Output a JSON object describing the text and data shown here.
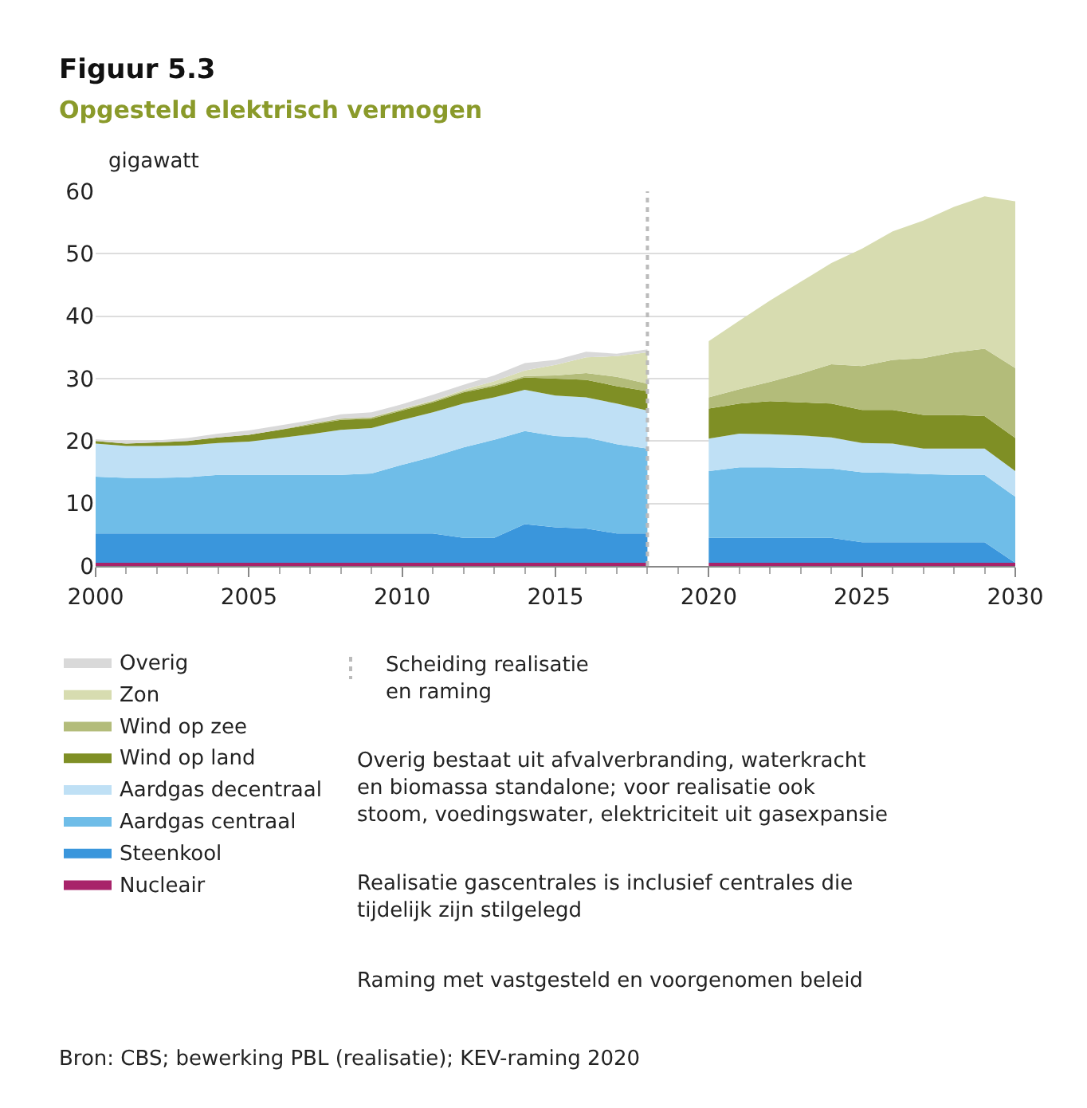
{
  "chart_data": {
    "type": "area",
    "stacked": true,
    "title": "Figuur 5.3",
    "subtitle": "Opgesteld elektrisch vermogen",
    "ylabel": "gigawatt",
    "x": [
      2000,
      2001,
      2002,
      2003,
      2004,
      2005,
      2006,
      2007,
      2008,
      2009,
      2010,
      2011,
      2012,
      2013,
      2014,
      2015,
      2016,
      2017,
      2018,
      2020,
      2021,
      2022,
      2023,
      2024,
      2025,
      2026,
      2027,
      2028,
      2029,
      2030
    ],
    "series": [
      {
        "name": "Nucleair",
        "color": "#a8236a",
        "values": [
          0.5,
          0.5,
          0.5,
          0.5,
          0.5,
          0.5,
          0.5,
          0.5,
          0.5,
          0.5,
          0.5,
          0.5,
          0.5,
          0.5,
          0.5,
          0.5,
          0.5,
          0.5,
          0.5,
          0.5,
          0.5,
          0.5,
          0.5,
          0.5,
          0.5,
          0.5,
          0.5,
          0.5,
          0.5,
          0.5
        ]
      },
      {
        "name": "Steenkool",
        "color": "#3a96dc",
        "values": [
          4.7,
          4.7,
          4.7,
          4.7,
          4.7,
          4.7,
          4.7,
          4.7,
          4.7,
          4.7,
          4.7,
          4.7,
          4.0,
          4.0,
          6.2,
          5.7,
          5.5,
          4.7,
          4.7,
          4.0,
          4.0,
          4.0,
          4.0,
          4.0,
          3.3,
          3.3,
          3.3,
          3.3,
          3.3,
          0.0
        ]
      },
      {
        "name": "Aardgas centraal",
        "color": "#6fbde8",
        "values": [
          9.1,
          8.9,
          8.9,
          9.0,
          9.4,
          9.4,
          9.4,
          9.4,
          9.4,
          9.6,
          11.0,
          12.3,
          14.5,
          15.7,
          14.9,
          14.6,
          14.6,
          14.3,
          13.6,
          10.7,
          11.3,
          11.3,
          11.2,
          11.1,
          11.2,
          11.1,
          10.9,
          10.8,
          10.8,
          10.6
        ]
      },
      {
        "name": "Aardgas decentraal",
        "color": "#bfe0f5",
        "values": [
          5.3,
          5.1,
          5.1,
          5.1,
          5.1,
          5.3,
          5.9,
          6.5,
          7.2,
          7.3,
          7.2,
          7.1,
          7.0,
          6.8,
          6.6,
          6.5,
          6.4,
          6.5,
          6.1,
          5.2,
          5.4,
          5.3,
          5.2,
          5.0,
          4.7,
          4.7,
          4.1,
          4.2,
          4.2,
          4.1
        ]
      },
      {
        "name": "Wind op land",
        "color": "#7f8f25",
        "values": [
          0.4,
          0.4,
          0.6,
          0.7,
          0.9,
          1.1,
          1.3,
          1.5,
          1.6,
          1.5,
          1.5,
          1.6,
          1.8,
          1.8,
          2.0,
          2.7,
          2.8,
          2.8,
          3.1,
          4.8,
          4.8,
          5.3,
          5.3,
          5.4,
          5.3,
          5.4,
          5.4,
          5.4,
          5.2,
          5.3
        ]
      },
      {
        "name": "Wind op zee",
        "color": "#b3bc7a",
        "values": [
          0,
          0,
          0,
          0,
          0,
          0,
          0,
          0.2,
          0.2,
          0.2,
          0.2,
          0.2,
          0.2,
          0.2,
          0.2,
          0.5,
          1.1,
          1.5,
          1.2,
          1.8,
          2.3,
          3.1,
          4.6,
          6.3,
          7.0,
          8.0,
          9.1,
          10.0,
          10.8,
          11.2
        ]
      },
      {
        "name": "Zon",
        "color": "#d7dcb0",
        "values": [
          0,
          0,
          0,
          0,
          0,
          0,
          0,
          0,
          0,
          0,
          0.1,
          0.1,
          0.2,
          0.6,
          0.9,
          1.7,
          2.5,
          3.3,
          5.0,
          9.0,
          11.0,
          13.0,
          14.7,
          16.2,
          18.8,
          20.6,
          22.0,
          23.3,
          24.4,
          26.7
        ]
      },
      {
        "name": "Overig",
        "color": "#d9d9d9",
        "x": [
          2000,
          2001,
          2002,
          2003,
          2004,
          2005,
          2006,
          2007,
          2008,
          2009,
          2010,
          2011,
          2012,
          2013,
          2014,
          2015,
          2016,
          2017,
          2018
        ],
        "values": [
          0.3,
          0.3,
          0.3,
          0.5,
          0.6,
          0.7,
          0.7,
          0.5,
          0.7,
          0.8,
          0.7,
          0.9,
          0.8,
          0.9,
          1.2,
          0.8,
          0.9,
          0.4,
          0.5
        ]
      }
    ],
    "xlim": [
      2000,
      2030
    ],
    "xticks": [
      2000,
      2005,
      2010,
      2015,
      2020,
      2025,
      2030
    ],
    "ylim": [
      0,
      60
    ],
    "yticks": [
      0,
      10,
      20,
      30,
      40,
      50,
      60
    ],
    "grid": "y",
    "legend": "bottom",
    "ref_lines": [
      {
        "axis": "x",
        "value": 2018,
        "label": "Scheiding realisatie\nen raming",
        "color": "#bbbbbb",
        "line_style": "dotted"
      }
    ],
    "annotations": [
      "Overig bestaat uit afvalverbranding, waterkracht\nen biomassa standalone; voor realisatie ook\nstoom, voedingswater, elektriciteit uit gasexpansie",
      "Realisatie gascentrales is inclusief centrales die\ntijdelijk zijn stilgelegd",
      "Raming met vastgesteld en voorgenomen beleid",
      "Bron: CBS; bewerking PBL (realisatie); KEV-raming 2020"
    ]
  }
}
